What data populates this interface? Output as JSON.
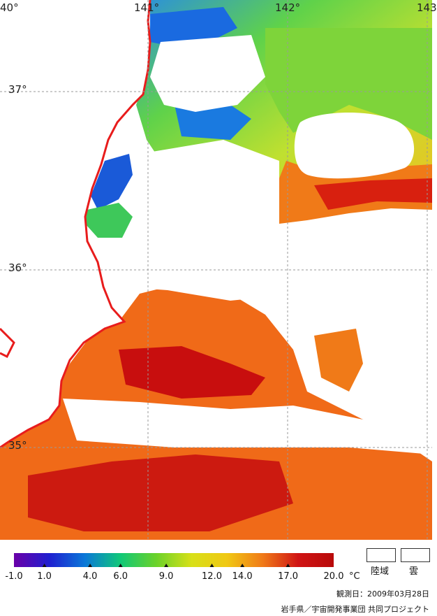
{
  "map": {
    "longitude_labels": [
      "40°",
      "141°",
      "142°",
      "143"
    ],
    "latitude_labels": [
      "37°",
      "36°",
      "35°"
    ],
    "colors": {
      "land": "#ffffff",
      "cloud": "#ffffff",
      "coastline": "#e81c1c",
      "grid": "#9a9a9a"
    }
  },
  "legend": {
    "tick_labels": [
      "-1.0",
      "1.0",
      "4.0",
      "6.0",
      "9.0",
      "12.0",
      "14.0",
      "17.0",
      "20.0"
    ],
    "tick_values": [
      -1.0,
      1.0,
      4.0,
      6.0,
      9.0,
      12.0,
      14.0,
      17.0,
      20.0
    ],
    "range": [
      -1.0,
      20.0
    ],
    "unit": "°C",
    "gradient_colors": [
      "#6a00a8",
      "#1f1fd0",
      "#0a78d8",
      "#10c878",
      "#6ad22a",
      "#d8e018",
      "#f0c814",
      "#f07a18",
      "#d01414",
      "#b80a0a"
    ],
    "land_key_label": "陸域",
    "cloud_key_label": "雲"
  },
  "observation_date": "観測日：2009年03月28日",
  "credit": "岩手県／宇宙開発事業団 共同プロジェクト"
}
